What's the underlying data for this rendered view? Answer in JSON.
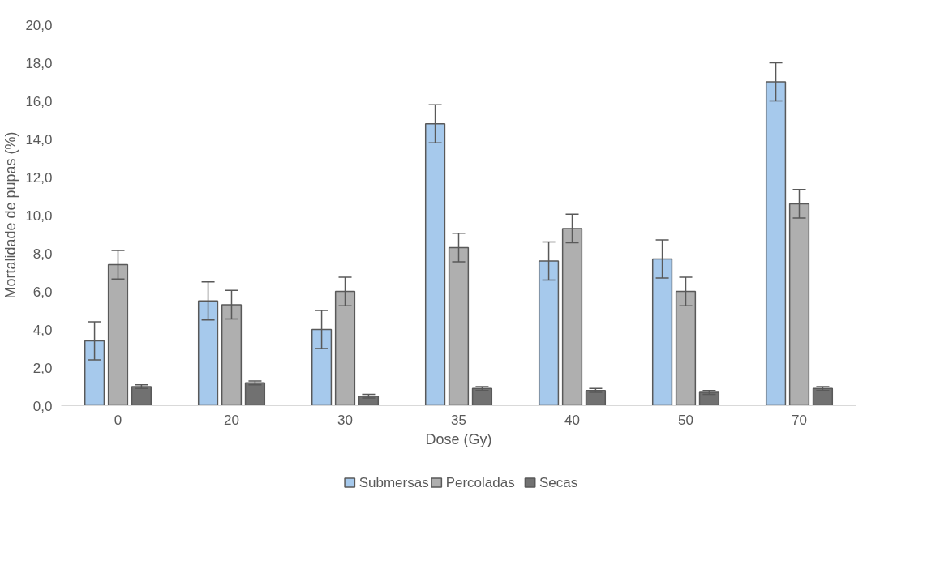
{
  "chart_data": {
    "type": "bar",
    "xlabel": "Dose (Gy)",
    "ylabel": "Mortalidade de pupas (%)",
    "categories": [
      "0",
      "20",
      "30",
      "35",
      "40",
      "50",
      "70"
    ],
    "series": [
      {
        "name": "Submersas",
        "color": "#a6c9ec",
        "values": [
          3.4,
          5.5,
          4.0,
          14.8,
          7.6,
          7.7,
          17.0
        ],
        "errors": [
          1.0,
          1.0,
          1.0,
          1.0,
          1.0,
          1.0,
          1.0
        ]
      },
      {
        "name": "Percoladas",
        "color": "#afafaf",
        "values": [
          7.4,
          5.3,
          6.0,
          8.3,
          9.3,
          6.0,
          10.6
        ],
        "errors": [
          0.75,
          0.75,
          0.75,
          0.75,
          0.75,
          0.75,
          0.75
        ]
      },
      {
        "name": "Secas",
        "color": "#717171",
        "values": [
          1.0,
          1.2,
          0.5,
          0.9,
          0.8,
          0.7,
          0.9
        ],
        "errors": [
          0.1,
          0.1,
          0.1,
          0.1,
          0.1,
          0.1,
          0.1
        ]
      }
    ],
    "ylim": [
      0,
      20
    ],
    "yticks": [
      {
        "value": 0,
        "label": "0,0"
      },
      {
        "value": 2,
        "label": "2,0"
      },
      {
        "value": 4,
        "label": "4,0"
      },
      {
        "value": 6,
        "label": "6,0"
      },
      {
        "value": 8,
        "label": "8,0"
      },
      {
        "value": 10,
        "label": "10,0"
      },
      {
        "value": 12,
        "label": "12,0"
      },
      {
        "value": 14,
        "label": "14,0"
      },
      {
        "value": 16,
        "label": "16,0"
      },
      {
        "value": 18,
        "label": "18,0"
      },
      {
        "value": 20,
        "label": "20,0"
      }
    ],
    "grid": false,
    "legend": "bottom"
  }
}
